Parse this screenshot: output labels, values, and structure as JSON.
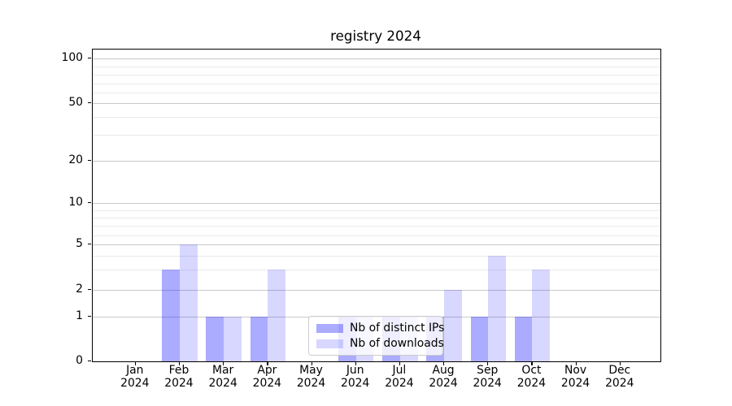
{
  "figure": {
    "title": "registry 2024"
  },
  "chart_data": {
    "type": "bar",
    "title": "registry 2024",
    "categories": [
      "Jan",
      "Feb",
      "Mar",
      "Apr",
      "May",
      "Jun",
      "Jul",
      "Aug",
      "Sep",
      "Oct",
      "Nov",
      "Dec"
    ],
    "year_label": "2024",
    "series": [
      {
        "name": "Nb of distinct IPs",
        "color": "rgba(0,0,255,0.33)",
        "values": [
          0,
          3,
          1,
          1,
          0,
          1,
          1,
          1,
          1,
          1,
          0,
          0
        ]
      },
      {
        "name": "Nb of downloads",
        "color": "rgba(0,0,255,0.155)",
        "values": [
          0,
          5,
          1,
          3,
          0,
          1,
          1,
          2,
          4,
          3,
          0,
          0
        ]
      }
    ],
    "xlabel": "",
    "ylabel": "",
    "yscale": "log-like with linear region near zero (asinh style)",
    "ytick_labels": [
      "0",
      "1",
      "2",
      "5",
      "10",
      "20",
      "50",
      "100"
    ],
    "ytick_values": [
      0,
      1,
      2,
      5,
      10,
      20,
      50,
      100
    ],
    "minor_tick_values": [
      3,
      4,
      6,
      7,
      8,
      9,
      30,
      40,
      60,
      70,
      80,
      90
    ],
    "ylim": [
      0,
      110
    ],
    "grid": true,
    "legend_position": "lower center"
  }
}
